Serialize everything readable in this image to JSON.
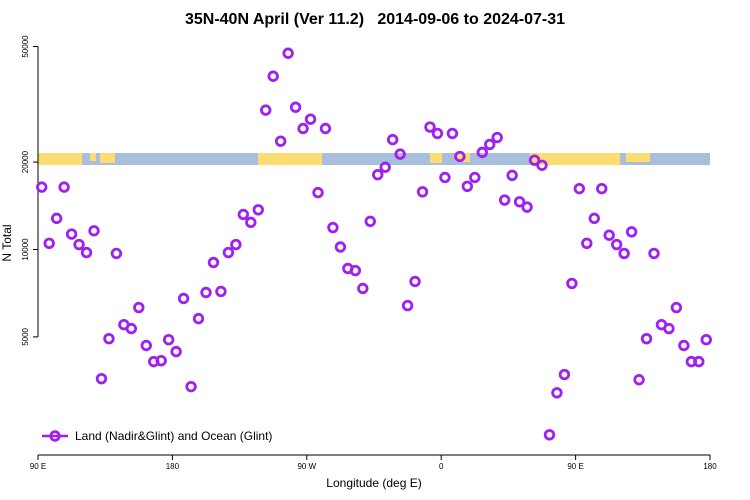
{
  "chart_data": {
    "type": "scatter",
    "title": "35N-40N April (Ver 11.2)   2014-09-06 to 2024-07-31",
    "x_label": "Longitude (deg E)",
    "y_label": "N Total",
    "log_y": true,
    "legend": "bottom-left",
    "xlim": [
      90,
      540
    ],
    "xticks": [
      {
        "value": 90,
        "label": "90 E"
      },
      180,
      {
        "value": 270,
        "label": "90 W"
      },
      {
        "value": 360,
        "label": "0"
      },
      {
        "value": 450,
        "label": "90 E"
      },
      {
        "value": 540,
        "label": "180"
      }
    ],
    "ylim": [
      1960,
      57000
    ],
    "yticks": [
      5000,
      10000,
      20000,
      50000
    ],
    "series": [
      {
        "name": "Land (Nadir&Glint) and Ocean (Glint)",
        "color": "#a020f0",
        "x": [
          92.5,
          97.5,
          102.5,
          107.5,
          112.5,
          117.5,
          122.5,
          127.5,
          132.5,
          137.5,
          142.5,
          147.5,
          152.5,
          157.5,
          162.5,
          167.5,
          172.5,
          177.5,
          182.5,
          187.5,
          192.5,
          197.5,
          202.5,
          207.5,
          212.5,
          217.5,
          222.5,
          227.5,
          232.5,
          237.5,
          242.5,
          247.5,
          252.5,
          257.5,
          262.5,
          267.5,
          272.5,
          277.5,
          282.5,
          287.5,
          292.5,
          297.5,
          302.5,
          307.5,
          312.5,
          317.5,
          322.5,
          327.5,
          332.5,
          337.5,
          342.5,
          347.5,
          352.5,
          357.5,
          362.5,
          367.5,
          372.5,
          377.5,
          382.5,
          387.5,
          392.5,
          397.5,
          402.5,
          407.5,
          412.5,
          417.5,
          422.5,
          427.5,
          432.5,
          437.5,
          442.5,
          447.5,
          452.5,
          457.5,
          462.5,
          467.5,
          472.5,
          477.5,
          482.5,
          487.5,
          492.5,
          497.5,
          502.5,
          507.5,
          512.5,
          517.5,
          522.5,
          527.5,
          532.5,
          537.5
        ],
        "values": [
          16400,
          10500,
          12800,
          16400,
          11300,
          10400,
          9760,
          11600,
          3590,
          4930,
          9690,
          5510,
          5340,
          6310,
          4670,
          4110,
          4140,
          4890,
          4450,
          6780,
          3370,
          5780,
          7110,
          9020,
          7170,
          9760,
          10400,
          13200,
          12400,
          13700,
          30200,
          39500,
          23600,
          47400,
          30900,
          26100,
          28100,
          15700,
          26100,
          11900,
          10200,
          8600,
          8460,
          7340,
          12500,
          18100,
          19200,
          23900,
          21300,
          6410,
          7760,
          15800,
          26400,
          25100,
          17700,
          25100,
          20900,
          16500,
          17700,
          21600,
          23000,
          24300,
          14800,
          18000,
          14600,
          14000,
          20300,
          19500,
          2300,
          3210,
          3710,
          7640,
          16200,
          10500,
          12800,
          16200,
          11200,
          10400,
          9690,
          11500,
          3560,
          4930,
          9690,
          5510,
          5340,
          6310,
          4670,
          4110,
          4110,
          4890
        ]
      }
    ]
  }
}
